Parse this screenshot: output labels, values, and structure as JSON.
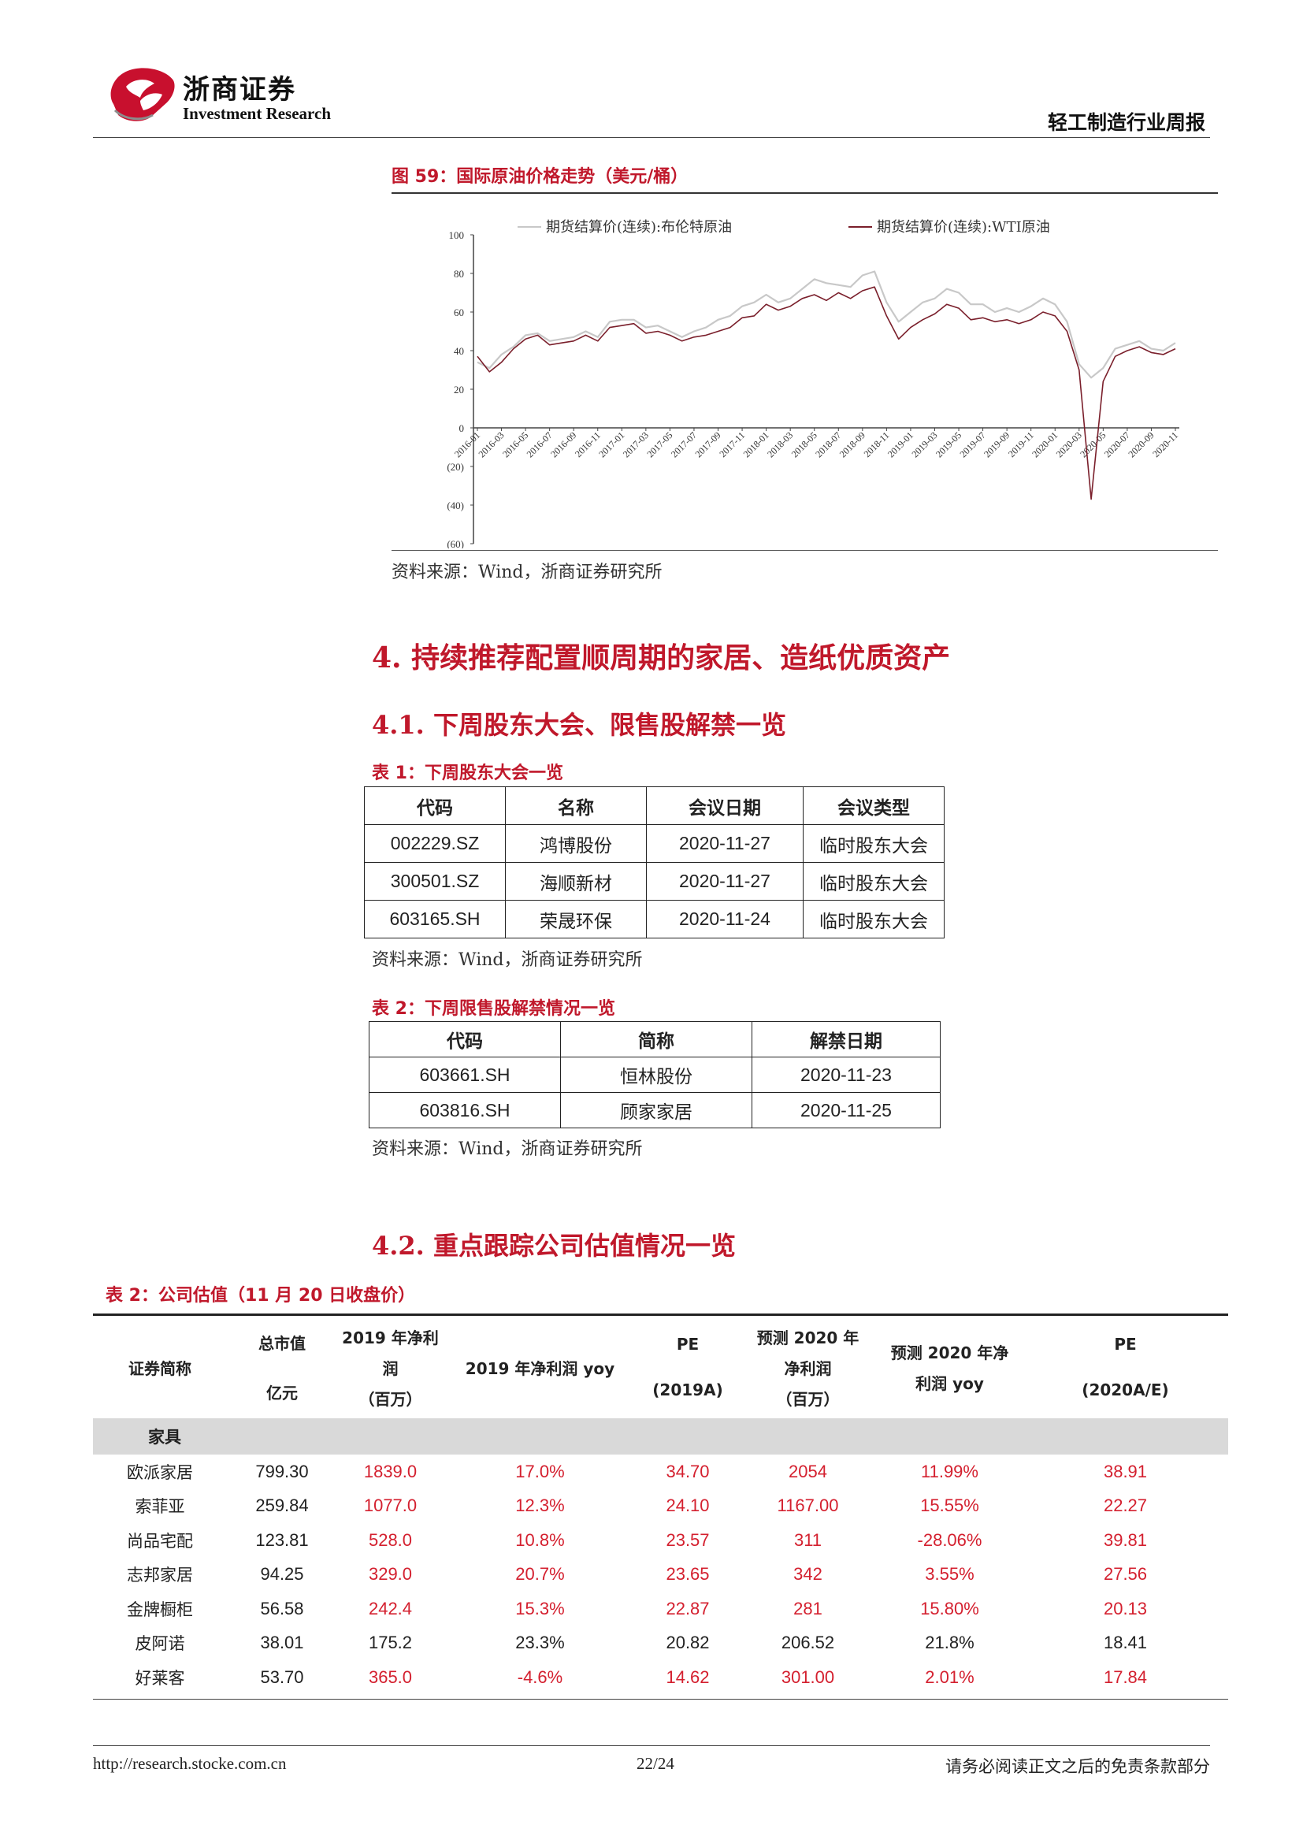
{
  "header": {
    "brand_cn": "浙商证券",
    "brand_en": "Investment Research",
    "report_title": "轻工制造行业周报",
    "logo_color": "#c8102e"
  },
  "figure": {
    "title": "图 59：国际原油价格走势（美元/桶）",
    "source": "资料来源：Wind，浙商证券研究所",
    "chart_data": {
      "type": "line",
      "legend_position": "top",
      "ylim": [
        -60,
        100
      ],
      "yticks": [
        "100",
        "80",
        "60",
        "40",
        "20",
        "0",
        "(20)",
        "(40)",
        "(60)"
      ],
      "xticks": [
        "2016-01",
        "2016-03",
        "2016-05",
        "2016-07",
        "2016-09",
        "2016-11",
        "2017-01",
        "2017-03",
        "2017-05",
        "2017-07",
        "2017-09",
        "2017-11",
        "2018-01",
        "2018-03",
        "2018-05",
        "2018-07",
        "2018-09",
        "2018-11",
        "2019-01",
        "2019-03",
        "2019-05",
        "2019-07",
        "2019-09",
        "2019-11",
        "2020-01",
        "2020-03",
        "2020-05",
        "2020-07",
        "2020-09",
        "2020-11"
      ],
      "series": [
        {
          "name": "期货结算价(连续):布伦特原油",
          "color": "#c8c8c8",
          "x": [
            "2016-01",
            "2016-02",
            "2016-03",
            "2016-04",
            "2016-05",
            "2016-06",
            "2016-07",
            "2016-08",
            "2016-09",
            "2016-10",
            "2016-11",
            "2016-12",
            "2017-01",
            "2017-02",
            "2017-03",
            "2017-04",
            "2017-05",
            "2017-06",
            "2017-07",
            "2017-08",
            "2017-09",
            "2017-10",
            "2017-11",
            "2017-12",
            "2018-01",
            "2018-02",
            "2018-03",
            "2018-04",
            "2018-05",
            "2018-06",
            "2018-07",
            "2018-08",
            "2018-09",
            "2018-10",
            "2018-11",
            "2018-12",
            "2019-01",
            "2019-02",
            "2019-03",
            "2019-04",
            "2019-05",
            "2019-06",
            "2019-07",
            "2019-08",
            "2019-09",
            "2019-10",
            "2019-11",
            "2019-12",
            "2020-01",
            "2020-02",
            "2020-03",
            "2020-04",
            "2020-05",
            "2020-06",
            "2020-07",
            "2020-08",
            "2020-09",
            "2020-10",
            "2020-11"
          ],
          "values": [
            34,
            31,
            38,
            42,
            48,
            49,
            45,
            46,
            47,
            50,
            47,
            55,
            56,
            56,
            52,
            53,
            50,
            47,
            50,
            52,
            56,
            58,
            63,
            65,
            69,
            65,
            67,
            72,
            77,
            75,
            74,
            73,
            79,
            81,
            65,
            55,
            60,
            65,
            67,
            72,
            70,
            64,
            64,
            60,
            62,
            60,
            63,
            67,
            64,
            55,
            33,
            26,
            31,
            41,
            43,
            45,
            41,
            40,
            44
          ]
        },
        {
          "name": "期货结算价(连续):WTI原油",
          "color": "#7a1f2b",
          "x": [
            "2016-01",
            "2016-02",
            "2016-03",
            "2016-04",
            "2016-05",
            "2016-06",
            "2016-07",
            "2016-08",
            "2016-09",
            "2016-10",
            "2016-11",
            "2016-12",
            "2017-01",
            "2017-02",
            "2017-03",
            "2017-04",
            "2017-05",
            "2017-06",
            "2017-07",
            "2017-08",
            "2017-09",
            "2017-10",
            "2017-11",
            "2017-12",
            "2018-01",
            "2018-02",
            "2018-03",
            "2018-04",
            "2018-05",
            "2018-06",
            "2018-07",
            "2018-08",
            "2018-09",
            "2018-10",
            "2018-11",
            "2018-12",
            "2019-01",
            "2019-02",
            "2019-03",
            "2019-04",
            "2019-05",
            "2019-06",
            "2019-07",
            "2019-08",
            "2019-09",
            "2019-10",
            "2019-11",
            "2019-12",
            "2020-01",
            "2020-02",
            "2020-03",
            "2020-04",
            "2020-05",
            "2020-06",
            "2020-07",
            "2020-08",
            "2020-09",
            "2020-10",
            "2020-11"
          ],
          "values": [
            37,
            29,
            34,
            41,
            46,
            48,
            43,
            44,
            45,
            48,
            45,
            52,
            53,
            54,
            49,
            50,
            48,
            45,
            47,
            48,
            50,
            52,
            57,
            58,
            64,
            61,
            63,
            67,
            69,
            66,
            70,
            67,
            71,
            73,
            58,
            46,
            52,
            56,
            59,
            64,
            62,
            56,
            57,
            55,
            56,
            54,
            56,
            60,
            58,
            50,
            30,
            -37,
            24,
            37,
            40,
            42,
            39,
            38,
            41
          ]
        }
      ]
    }
  },
  "section4": {
    "title": "4. 持续推荐配置顺周期的家居、造纸优质资产",
    "sub1_title": "4.1. 下周股东大会、限售股解禁一览",
    "sub2_title": "4.2. 重点跟踪公司估值情况一览"
  },
  "table1": {
    "title": "表 1：下周股东大会一览",
    "headers": [
      "代码",
      "名称",
      "会议日期",
      "会议类型"
    ],
    "rows": [
      [
        "002229.SZ",
        "鸿博股份",
        "2020-11-27",
        "临时股东大会"
      ],
      [
        "300501.SZ",
        "海顺新材",
        "2020-11-27",
        "临时股东大会"
      ],
      [
        "603165.SH",
        "荣晟环保",
        "2020-11-24",
        "临时股东大会"
      ]
    ],
    "source": "资料来源：Wind，浙商证券研究所"
  },
  "table2": {
    "title": "表 2：下周限售股解禁情况一览",
    "headers": [
      "代码",
      "简称",
      "解禁日期"
    ],
    "rows": [
      [
        "603661.SH",
        "恒林股份",
        "2020-11-23"
      ],
      [
        "603816.SH",
        "顾家家居",
        "2020-11-25"
      ]
    ],
    "source": "资料来源：Wind，浙商证券研究所"
  },
  "table3": {
    "title": "表 2：公司估值（11 月 20 日收盘价）",
    "headers": {
      "name": "证券简称",
      "mktcap_1": "总市值",
      "mktcap_2": "亿元",
      "np2019_1": "2019 年净利",
      "np2019_2": "润",
      "np2019_3": "（百万）",
      "yoy2019": "2019 年净利润 yoy",
      "pe2019_1": "PE",
      "pe2019_2": "(2019A)",
      "np2020_1": "预测 2020 年",
      "np2020_2": "净利润",
      "np2020_3": "（百万）",
      "yoy2020_1": "预测 2020 年净",
      "yoy2020_2": "利润 yoy",
      "pe2020_1": "PE",
      "pe2020_2": "(2020A/E)"
    },
    "group": "家具",
    "highlight_color": "#d4202f",
    "rows": [
      {
        "name": "欧派家居",
        "mktcap": "799.30",
        "np2019": "1839.0",
        "yoy2019": "17.0%",
        "pe2019": "34.70",
        "np2020": "2054",
        "yoy2020": "11.99%",
        "pe2020": "38.91",
        "red": true
      },
      {
        "name": "索菲亚",
        "mktcap": "259.84",
        "np2019": "1077.0",
        "yoy2019": "12.3%",
        "pe2019": "24.10",
        "np2020": "1167.00",
        "yoy2020": "15.55%",
        "pe2020": "22.27",
        "red": true
      },
      {
        "name": "尚品宅配",
        "mktcap": "123.81",
        "np2019": "528.0",
        "yoy2019": "10.8%",
        "pe2019": "23.57",
        "np2020": "311",
        "yoy2020": "-28.06%",
        "pe2020": "39.81",
        "red": true
      },
      {
        "name": "志邦家居",
        "mktcap": "94.25",
        "np2019": "329.0",
        "yoy2019": "20.7%",
        "pe2019": "23.65",
        "np2020": "342",
        "yoy2020": "3.55%",
        "pe2020": "27.56",
        "red": true
      },
      {
        "name": "金牌橱柜",
        "mktcap": "56.58",
        "np2019": "242.4",
        "yoy2019": "15.3%",
        "pe2019": "22.87",
        "np2020": "281",
        "yoy2020": "15.80%",
        "pe2020": "20.13",
        "red": true
      },
      {
        "name": "皮阿诺",
        "mktcap": "38.01",
        "np2019": "175.2",
        "yoy2019": "23.3%",
        "pe2019": "20.82",
        "np2020": "206.52",
        "yoy2020": "21.8%",
        "pe2020": "18.41",
        "red": false
      },
      {
        "name": "好莱客",
        "mktcap": "53.70",
        "np2019": "365.0",
        "yoy2019": "-4.6%",
        "pe2019": "14.62",
        "np2020": "301.00",
        "yoy2020": "2.01%",
        "pe2020": "17.84",
        "red": true
      }
    ]
  },
  "footer": {
    "url": "http://research.stocke.com.cn",
    "page": "22/24",
    "note": "请务必阅读正文之后的免责条款部分"
  }
}
